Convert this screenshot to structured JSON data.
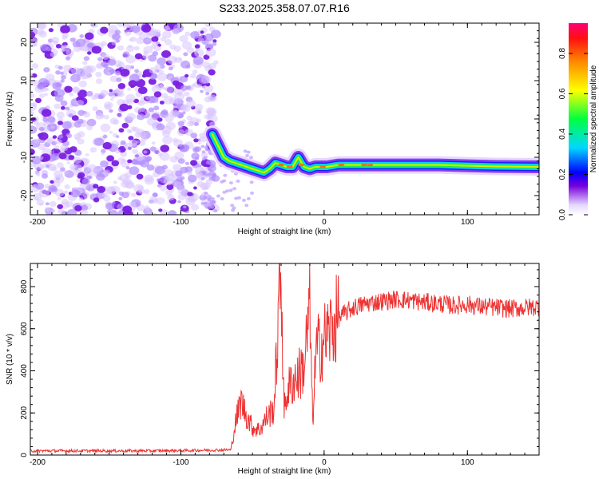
{
  "title": "S233.2025.358.07.07.R16",
  "chart_data": [
    {
      "type": "heatmap",
      "xlabel": "Height of straight line (km)",
      "ylabel": "Frequency (Hz)",
      "xlim": [
        -205,
        150
      ],
      "ylim": [
        -25,
        25
      ],
      "x_ticks": [
        -200,
        -100,
        0,
        100
      ],
      "y_ticks": [
        -20,
        -10,
        0,
        10,
        20
      ],
      "noise_region_x": [
        -205,
        -75
      ],
      "ridge": {
        "x": [
          -78,
          -74,
          -70,
          -66,
          -62,
          -58,
          -54,
          -50,
          -46,
          -42,
          -38,
          -34,
          -30,
          -26,
          -22,
          -18,
          -14,
          -10,
          -6,
          -2,
          2,
          10,
          20,
          40,
          60,
          80,
          100,
          120,
          150
        ],
        "frequency": [
          -4,
          -7,
          -10,
          -11,
          -11.5,
          -12,
          -12.5,
          -13,
          -13.5,
          -14,
          -13,
          -11.5,
          -12,
          -12.5,
          -12.5,
          -10,
          -12.5,
          -13,
          -12.5,
          -12.5,
          -12.5,
          -12,
          -12,
          -12,
          -12,
          -12,
          -12.2,
          -12.4,
          -12.5
        ]
      },
      "colorbar": {
        "label": "Normalized spectral amplitude",
        "ticks": [
          0.0,
          0.2,
          0.4,
          0.6,
          0.8
        ],
        "range": [
          0,
          0.95
        ]
      }
    },
    {
      "type": "line",
      "xlabel": "Height of straight line (km)",
      "ylabel": "SNR (10 * v/v)",
      "xlim": [
        -205,
        150
      ],
      "ylim": [
        0,
        910
      ],
      "x_ticks": [
        -200,
        -100,
        0,
        100
      ],
      "y_ticks": [
        0,
        200,
        400,
        600,
        800
      ],
      "color": "#ee3333",
      "series": [
        {
          "x": [
            -205,
            -180,
            -150,
            -120,
            -90,
            -65,
            -62,
            -58,
            -55,
            -50,
            -45,
            -40,
            -35,
            -30,
            -28,
            -26,
            -22,
            -18,
            -14,
            -10,
            -8,
            -6,
            -5,
            -2,
            0,
            5,
            10,
            20,
            30,
            40,
            50,
            60,
            70,
            80,
            90,
            100,
            110,
            120,
            130,
            140,
            150
          ],
          "y": [
            20,
            20,
            20,
            20,
            22,
            25,
            150,
            260,
            200,
            130,
            120,
            180,
            220,
            900,
            200,
            300,
            350,
            380,
            420,
            700,
            150,
            450,
            500,
            520,
            550,
            600,
            650,
            700,
            720,
            730,
            740,
            735,
            725,
            720,
            710,
            715,
            705,
            700,
            695,
            700,
            705
          ]
        }
      ]
    }
  ]
}
